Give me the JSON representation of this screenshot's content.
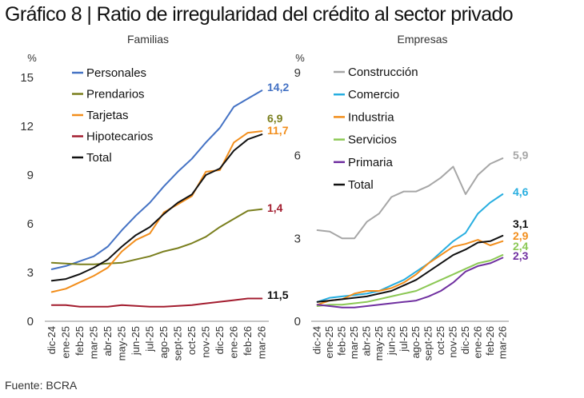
{
  "title": "Gráfico 8 | Ratio de irregularidad del crédito al sector privado",
  "source": "Fuente: BCRA",
  "colors": {
    "blue": "#4472C4",
    "olive": "#7A7F1E",
    "orange": "#F28E1C",
    "maroon": "#A31D2F",
    "black": "#111111",
    "gray": "#A6A6A6",
    "cyan": "#27AEE0",
    "green": "#8CC855",
    "purple": "#7030A0"
  },
  "chart_data": [
    {
      "type": "line",
      "title": "Familias",
      "unit": "%",
      "categories": [
        "dic-24",
        "ene-25",
        "feb-25",
        "mar-25",
        "abr-25",
        "may-25",
        "jun-25",
        "jul-25",
        "ago-25",
        "sept-25",
        "oct-25",
        "nov-25",
        "dic-25",
        "ene-26",
        "feb-26",
        "mar-26"
      ],
      "ylim": [
        0,
        15
      ],
      "yticks": [
        "0",
        "3",
        "6",
        "9",
        "12",
        "15"
      ],
      "series": [
        {
          "name": "Personales",
          "color": "#4472C4",
          "end_label": "14,2",
          "values": [
            3.2,
            3.4,
            3.7,
            4.0,
            4.6,
            5.6,
            6.5,
            7.3,
            8.3,
            9.2,
            10.0,
            11.0,
            11.9,
            13.2,
            13.7,
            14.2
          ]
        },
        {
          "name": "Prendarios",
          "color": "#7A7F1E",
          "end_label": "6,9",
          "values": [
            3.6,
            3.55,
            3.5,
            3.5,
            3.55,
            3.6,
            3.8,
            4.0,
            4.3,
            4.5,
            4.8,
            5.2,
            5.8,
            6.3,
            6.8,
            6.9
          ]
        },
        {
          "name": "Tarjetas",
          "color": "#F28E1C",
          "end_label": "11,7",
          "values": [
            1.8,
            2.0,
            2.4,
            2.8,
            3.3,
            4.3,
            5.0,
            5.4,
            6.7,
            7.2,
            7.7,
            9.2,
            9.3,
            11.0,
            11.6,
            11.7
          ]
        },
        {
          "name": "Hipotecarios",
          "color": "#A31D2F",
          "end_label": "1,4",
          "values": [
            1.0,
            1.0,
            0.9,
            0.9,
            0.9,
            1.0,
            0.95,
            0.9,
            0.9,
            0.95,
            1.0,
            1.1,
            1.2,
            1.3,
            1.4,
            1.4
          ]
        },
        {
          "name": "Total",
          "color": "#111111",
          "end_label": "11,5",
          "values": [
            2.5,
            2.6,
            2.9,
            3.3,
            3.8,
            4.6,
            5.3,
            5.8,
            6.6,
            7.3,
            7.8,
            9.0,
            9.4,
            10.5,
            11.2,
            11.5
          ]
        }
      ]
    },
    {
      "type": "line",
      "title": "Empresas",
      "unit": "%",
      "categories": [
        "dic-24",
        "ene-25",
        "feb-25",
        "mar-25",
        "abr-25",
        "may-25",
        "jun-25",
        "jul-25",
        "ago-25",
        "sept-25",
        "oct-25",
        "nov-25",
        "dic-25",
        "ene-26",
        "feb-26",
        "mar-26"
      ],
      "ylim": [
        0,
        9
      ],
      "yticks": [
        "0",
        "3",
        "6",
        "9"
      ],
      "series": [
        {
          "name": "Construcción",
          "color": "#A6A6A6",
          "end_label": "5,9",
          "values": [
            3.3,
            3.25,
            3.0,
            3.0,
            3.6,
            3.9,
            4.5,
            4.7,
            4.7,
            4.9,
            5.2,
            5.6,
            4.6,
            5.3,
            5.7,
            5.9
          ]
        },
        {
          "name": "Comercio",
          "color": "#27AEE0",
          "end_label": "4,6",
          "values": [
            0.7,
            0.85,
            0.9,
            0.95,
            1.0,
            1.1,
            1.3,
            1.5,
            1.8,
            2.1,
            2.5,
            2.9,
            3.2,
            3.9,
            4.3,
            4.6
          ]
        },
        {
          "name": "Industria",
          "color": "#F28E1C",
          "end_label": "2,9",
          "values": [
            0.6,
            0.75,
            0.8,
            1.0,
            1.1,
            1.1,
            1.2,
            1.4,
            1.7,
            2.1,
            2.4,
            2.7,
            2.8,
            2.95,
            2.75,
            2.9
          ]
        },
        {
          "name": "Servicios",
          "color": "#8CC855",
          "end_label": "2,4",
          "values": [
            0.55,
            0.6,
            0.6,
            0.65,
            0.7,
            0.8,
            0.9,
            1.0,
            1.1,
            1.3,
            1.5,
            1.7,
            1.9,
            2.1,
            2.2,
            2.4
          ]
        },
        {
          "name": "Primaria",
          "color": "#7030A0",
          "end_label": "2,3",
          "values": [
            0.6,
            0.55,
            0.5,
            0.5,
            0.55,
            0.6,
            0.65,
            0.7,
            0.75,
            0.9,
            1.1,
            1.4,
            1.8,
            2.0,
            2.1,
            2.3
          ]
        },
        {
          "name": "Total",
          "color": "#111111",
          "end_label": "3,1",
          "values": [
            0.7,
            0.75,
            0.8,
            0.85,
            0.9,
            1.0,
            1.1,
            1.3,
            1.5,
            1.8,
            2.1,
            2.4,
            2.6,
            2.85,
            2.9,
            3.1
          ]
        }
      ]
    }
  ]
}
